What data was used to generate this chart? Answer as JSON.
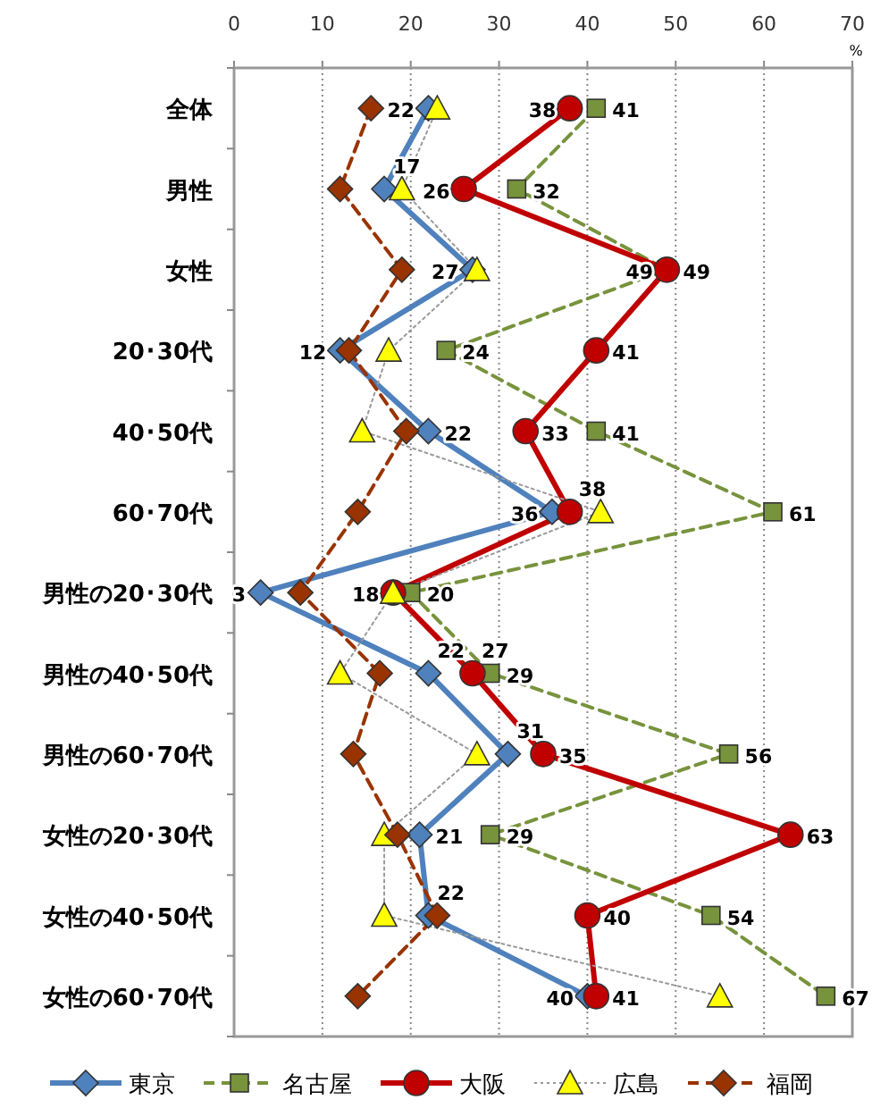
{
  "chart_data": {
    "type": "line",
    "orientation": "horizontal",
    "xlabel": "%",
    "categories": [
      "全体",
      "男性",
      "女性",
      "20･30代",
      "40･50代",
      "60･70代",
      "男性の20･30代",
      "男性の40･50代",
      "男性の60･70代",
      "女性の20･30代",
      "女性の40･50代",
      "女性の60･70代"
    ],
    "xlim": [
      0,
      70
    ],
    "xticks": [
      0,
      10,
      20,
      30,
      40,
      50,
      60,
      70
    ],
    "grid": "x",
    "legend": "bottom",
    "series": [
      {
        "name": "東京",
        "color": "#4f81bd",
        "marker": "diamond",
        "line_style": "solid",
        "values": [
          22,
          17,
          27,
          12,
          22,
          36,
          3,
          22,
          31,
          21,
          22,
          40
        ],
        "value_labels": [
          "22",
          "17",
          "27",
          "12",
          "22",
          "36",
          "3",
          "22",
          "31",
          "21",
          "22",
          "40"
        ]
      },
      {
        "name": "名古屋",
        "color": "#77933c",
        "marker": "square",
        "line_style": "dashed",
        "values": [
          41,
          32,
          49,
          24,
          41,
          61,
          20,
          29,
          56,
          29,
          54,
          67
        ],
        "value_labels": [
          "41",
          "32",
          "49",
          "24",
          "41",
          "61",
          "20",
          "29",
          "56",
          "29",
          "54",
          "67"
        ]
      },
      {
        "name": "大阪",
        "color": "#c00000",
        "marker": "circle",
        "line_style": "solid",
        "values": [
          38,
          26,
          49,
          41,
          33,
          38,
          18,
          27,
          35,
          63,
          40,
          41
        ],
        "value_labels": [
          "38",
          "26",
          "49",
          "41",
          "33",
          "38",
          "18",
          "27",
          "35",
          "63",
          "40",
          "41"
        ]
      },
      {
        "name": "広島",
        "color": "#ffff00",
        "marker": "triangle",
        "line_style": "dotted",
        "values": [
          23,
          19,
          27.5,
          17.5,
          14.5,
          41.5,
          18,
          12,
          27.5,
          17,
          17,
          55
        ]
      },
      {
        "name": "福岡",
        "color": "#993300",
        "marker": "diamond",
        "line_style": "dashed",
        "values": [
          15.5,
          12,
          19,
          13,
          19.5,
          14,
          7.5,
          16.5,
          13.5,
          18.5,
          23,
          14
        ]
      }
    ]
  }
}
